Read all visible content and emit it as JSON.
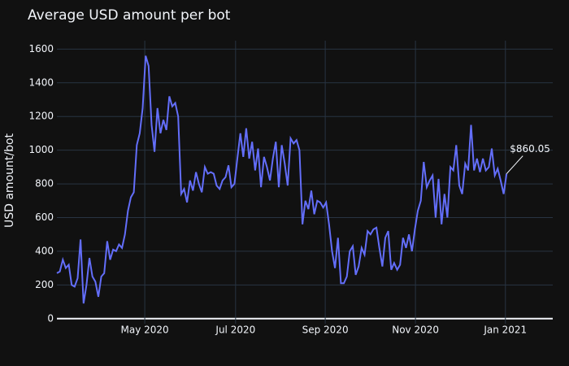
{
  "chart_data": {
    "type": "line",
    "title": "Average USD amount per bot",
    "y_label": "USD amount/bot",
    "color": "#636efa",
    "grid": true,
    "annotation": "$860.05",
    "values": [
      270,
      280,
      350,
      300,
      320,
      200,
      190,
      240,
      470,
      90,
      200,
      360,
      250,
      220,
      130,
      250,
      270,
      460,
      350,
      410,
      400,
      440,
      420,
      500,
      640,
      720,
      750,
      1030,
      1100,
      1250,
      1560,
      1500,
      1150,
      990,
      1250,
      1100,
      1180,
      1120,
      1320,
      1260,
      1280,
      1200,
      740,
      770,
      690,
      820,
      760,
      870,
      800,
      750,
      900,
      860,
      870,
      860,
      790,
      770,
      820,
      840,
      910,
      780,
      800,
      950,
      1100,
      960,
      1130,
      950,
      1050,
      880,
      1010,
      780,
      960,
      900,
      820,
      950,
      1050,
      780,
      1030,
      920,
      790,
      1070,
      1040,
      1060,
      1000,
      560,
      700,
      650,
      760,
      620,
      700,
      690,
      660,
      690,
      560,
      400,
      300,
      480,
      210,
      210,
      250,
      400,
      430,
      260,
      310,
      420,
      380,
      520,
      500,
      530,
      540,
      420,
      310,
      480,
      520,
      290,
      330,
      290,
      320,
      480,
      420,
      500,
      400,
      530,
      640,
      700,
      930,
      780,
      820,
      850,
      600,
      830,
      560,
      740,
      600,
      900,
      880,
      1030,
      790,
      740,
      920,
      880,
      1150,
      880,
      950,
      870,
      950,
      880,
      900,
      1010,
      850,
      890,
      820,
      740,
      860.05
    ],
    "xlim": [
      0,
      167.6
    ],
    "xticks": [
      {
        "value": 29.7,
        "label": "May 2020"
      },
      {
        "value": 60.4,
        "label": "Jul 2020"
      },
      {
        "value": 90.7,
        "label": "Sep 2020"
      },
      {
        "value": 121.2,
        "label": "Nov 2020"
      },
      {
        "value": 151.6,
        "label": "Jan 2021"
      }
    ],
    "ylim": [
      -30,
      1650
    ],
    "yticks": [
      0,
      200,
      400,
      600,
      800,
      1000,
      1200,
      1400,
      1600
    ]
  }
}
